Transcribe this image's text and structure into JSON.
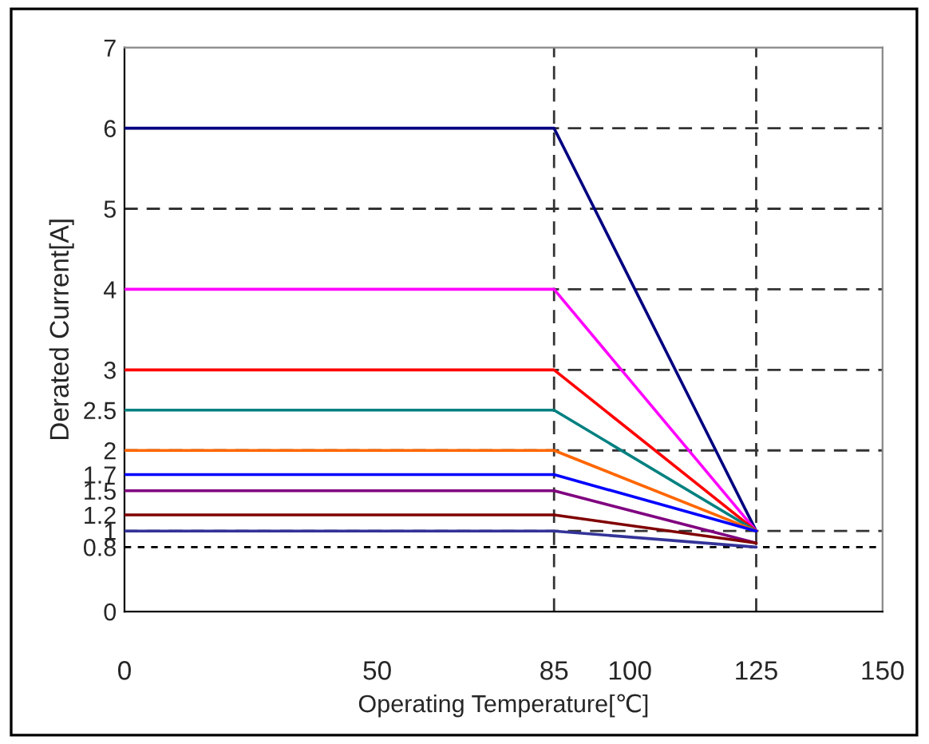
{
  "chart_data": {
    "type": "line",
    "xlabel": "Operating Temperature[℃]",
    "ylabel": "Derated Current[A]",
    "x": [
      0,
      85,
      125
    ],
    "series": [
      {
        "color": "#000080",
        "values": [
          6,
          6,
          1
        ]
      },
      {
        "color": "#ff00ff",
        "values": [
          4,
          4,
          1
        ]
      },
      {
        "color": "#ff0000",
        "values": [
          3,
          3,
          1
        ]
      },
      {
        "color": "#008080",
        "values": [
          2.5,
          2.5,
          1
        ]
      },
      {
        "color": "#ff6600",
        "values": [
          2,
          2,
          1
        ]
      },
      {
        "color": "#0000ff",
        "values": [
          1.7,
          1.7,
          1
        ]
      },
      {
        "color": "#800080",
        "values": [
          1.5,
          1.5,
          0.85
        ]
      },
      {
        "color": "#800000",
        "values": [
          1.2,
          1.2,
          0.85
        ]
      },
      {
        "color": "#333399",
        "values": [
          1,
          1,
          0.8
        ]
      }
    ],
    "xlim": [
      0,
      150
    ],
    "xticks": [
      0,
      50,
      85,
      100,
      125,
      150
    ],
    "ylim": [
      0,
      7
    ],
    "yticks": [
      0,
      0.8,
      1,
      1.2,
      1.5,
      1.7,
      2,
      2.5,
      3,
      4,
      5,
      6,
      7
    ],
    "ref_lines": [
      {
        "axis": "x",
        "value": 85,
        "line_style": "dashed",
        "color": "#333333"
      },
      {
        "axis": "x",
        "value": 125,
        "line_style": "dashed",
        "color": "#333333"
      },
      {
        "axis": "y",
        "value": 6,
        "line_style": "dashed",
        "color": "#333333"
      },
      {
        "axis": "y",
        "value": 5,
        "line_style": "dashed",
        "color": "#333333"
      },
      {
        "axis": "y",
        "value": 4,
        "line_style": "dashed",
        "color": "#333333"
      },
      {
        "axis": "y",
        "value": 3,
        "line_style": "dashed",
        "color": "#333333"
      },
      {
        "axis": "y",
        "value": 2,
        "line_style": "dashed",
        "color": "#333333"
      },
      {
        "axis": "y",
        "value": 1,
        "line_style": "dashed",
        "color": "#333333"
      },
      {
        "axis": "y",
        "value": 0.8,
        "line_style": "dotted",
        "color": "#000000"
      }
    ],
    "grid": false,
    "legend": false,
    "marker": "none",
    "line_style": "solid"
  }
}
